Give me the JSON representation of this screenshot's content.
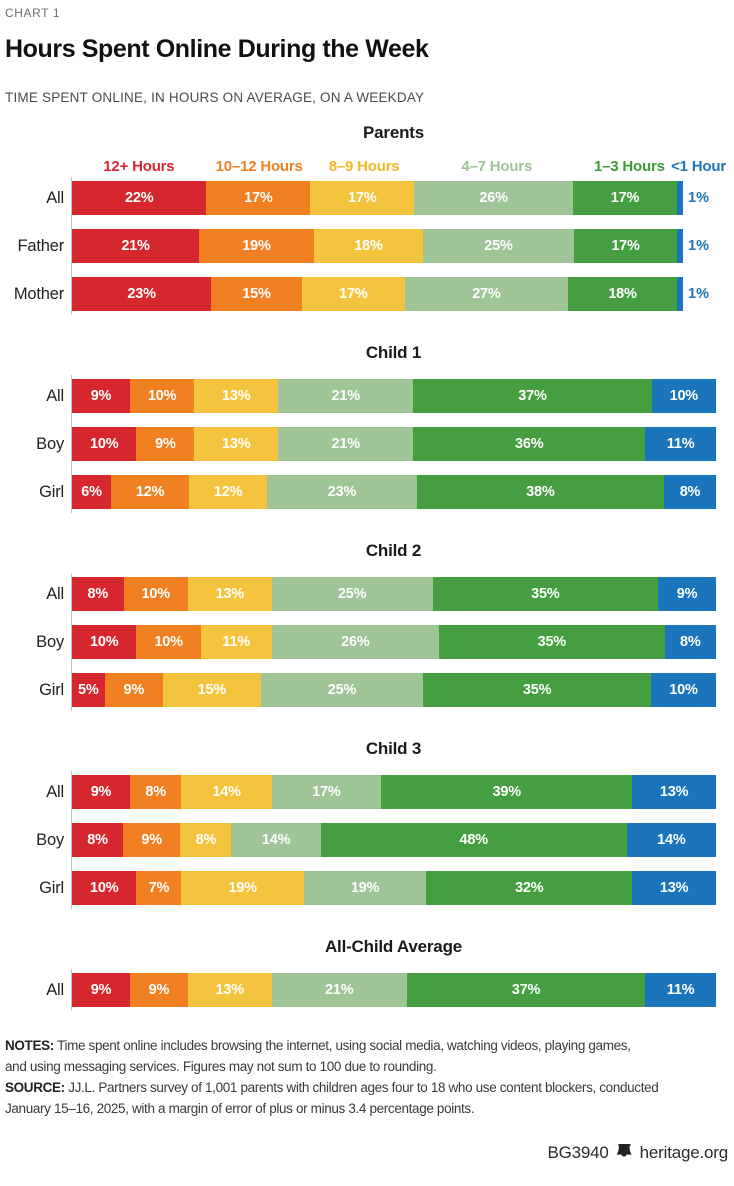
{
  "page": {
    "eyebrow": "CHART 1",
    "title": "Hours Spent Online During the Week",
    "subtitle": "TIME SPENT ONLINE, IN HOURS ON AVERAGE, ON A WEEKDAY",
    "footer": {
      "doc_id": "BG3940",
      "site": "heritage.org",
      "logo": "liberty-bell-icon"
    }
  },
  "footnotes": {
    "lines": [
      {
        "label": "NOTES:",
        "text": "Time spent online includes browsing the internet, using social media, watching videos, playing games,"
      },
      {
        "label": "",
        "text": "and using messaging services. Figures may not sum to 100 due to rounding."
      },
      {
        "label": "SOURCE:",
        "text": "JJ.L. Partners survey of 1,001 parents with children ages four to 18 who use content blockers, conducted"
      },
      {
        "label": "",
        "text": "January 15–16, 2025, with a margin of error of plus or minus 3.4 percentage points."
      }
    ]
  },
  "chart_data": {
    "type": "bar",
    "variant": "horizontal-stacked",
    "unit": "percent",
    "value_suffix": "%",
    "axis_color": "#c4c4c4",
    "label_text_color": "#ffffff",
    "categories": [
      {
        "label": "12+ Hours",
        "color": "#d7272e"
      },
      {
        "label": "10–12 Hours",
        "color": "#f08021"
      },
      {
        "label": "8–9 Hours",
        "color": "#f5c43e",
        "legend_color": "#f0b929"
      },
      {
        "label": "4–7 Hours",
        "color": "#9ec497"
      },
      {
        "label": "1–3 Hours",
        "color": "#459f41",
        "legend_color": "#3c9c35"
      },
      {
        "label": "<1 Hour",
        "color": "#1b75bc"
      }
    ],
    "legend_position": "above-first-section",
    "sections": [
      {
        "title": "Parents",
        "show_legend": true,
        "last_label_outside": true,
        "rows": [
          {
            "label": "All",
            "values": [
              22,
              17,
              17,
              26,
              17,
              1
            ]
          },
          {
            "label": "Father",
            "values": [
              21,
              19,
              18,
              25,
              17,
              1
            ]
          },
          {
            "label": "Mother",
            "values": [
              23,
              15,
              17,
              27,
              18,
              1
            ]
          }
        ]
      },
      {
        "title": "Child 1",
        "rows": [
          {
            "label": "All",
            "values": [
              9,
              10,
              13,
              21,
              37,
              10
            ]
          },
          {
            "label": "Boy",
            "values": [
              10,
              9,
              13,
              21,
              36,
              11
            ]
          },
          {
            "label": "Girl",
            "values": [
              6,
              12,
              12,
              23,
              38,
              8
            ]
          }
        ]
      },
      {
        "title": "Child 2",
        "rows": [
          {
            "label": "All",
            "values": [
              8,
              10,
              13,
              25,
              35,
              9
            ]
          },
          {
            "label": "Boy",
            "values": [
              10,
              10,
              11,
              26,
              35,
              8
            ]
          },
          {
            "label": "Girl",
            "values": [
              5,
              9,
              15,
              25,
              35,
              10
            ]
          }
        ]
      },
      {
        "title": "Child 3",
        "rows": [
          {
            "label": "All",
            "values": [
              9,
              8,
              14,
              17,
              39,
              13
            ]
          },
          {
            "label": "Boy",
            "values": [
              8,
              9,
              8,
              14,
              48,
              14
            ]
          },
          {
            "label": "Girl",
            "values": [
              10,
              7,
              19,
              19,
              32,
              13
            ]
          }
        ]
      },
      {
        "title": "All-Child Average",
        "rows": [
          {
            "label": "All",
            "values": [
              9,
              9,
              13,
              21,
              37,
              11
            ]
          }
        ]
      }
    ]
  }
}
